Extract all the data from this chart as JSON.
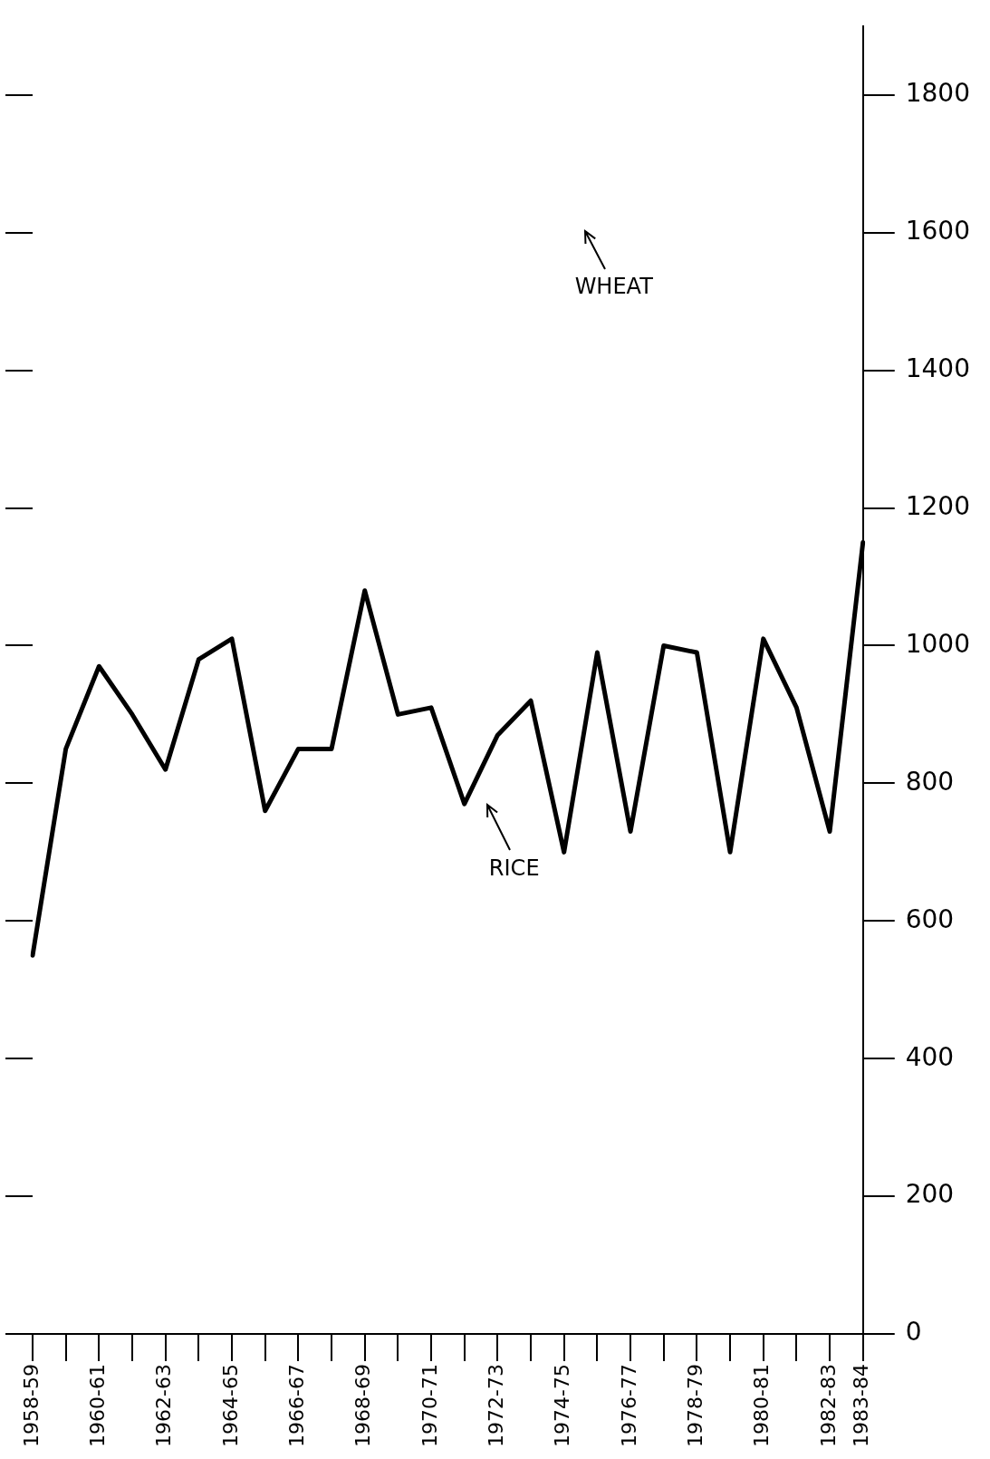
{
  "chart_data": {
    "type": "line",
    "categories": [
      "1958-59",
      null,
      "1960-61",
      null,
      "1962-63",
      null,
      "1964-65",
      null,
      "1966-67",
      null,
      "1968-69",
      null,
      "1970-71",
      null,
      "1972-73",
      null,
      "1974-75",
      null,
      "1976-77",
      null,
      "1978-79",
      null,
      "1980-81",
      null,
      "1982-83",
      "1983-84"
    ],
    "series": [
      {
        "color": "#000000",
        "values": [
          550,
          850,
          970,
          900,
          820,
          980,
          1010,
          760,
          850,
          850,
          1080,
          900,
          910,
          770,
          870,
          920,
          700,
          990,
          730,
          1000,
          990,
          700,
          1010,
          910,
          730,
          1150
        ]
      }
    ],
    "ylim": [
      0,
      1900
    ],
    "yticks": [
      0,
      200,
      400,
      600,
      800,
      1000,
      1200,
      1400,
      1600,
      1800
    ],
    "grid": false,
    "legend": false,
    "marker": "none",
    "line_style": "solid",
    "annotations": [
      "WHEAT",
      "RICE"
    ]
  }
}
